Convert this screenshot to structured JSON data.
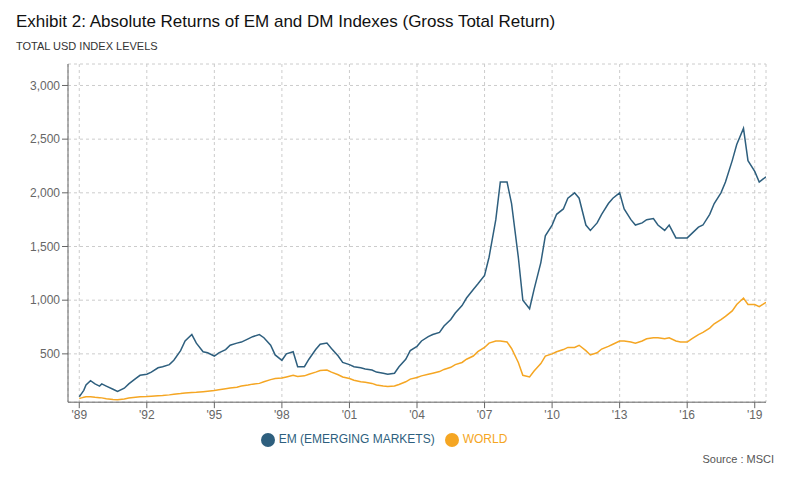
{
  "chart_data": {
    "type": "line",
    "title": "Exhibit 2: Absolute Returns of EM and DM Indexes (Gross Total Return)",
    "ylabel": "TOTAL USD INDEX LEVELS",
    "annotations": [
      "Source : MSCI"
    ],
    "grid": true,
    "legend": "bottom",
    "xlim": [
      1988.5,
      2019.5
    ],
    "xticks": [
      {
        "value": 1989,
        "label": "'89"
      },
      {
        "value": 1992,
        "label": "'92"
      },
      {
        "value": 1995,
        "label": "'95"
      },
      {
        "value": 1998,
        "label": "'98"
      },
      {
        "value": 2001,
        "label": "'01"
      },
      {
        "value": 2004,
        "label": "'04"
      },
      {
        "value": 2007,
        "label": "'07"
      },
      {
        "value": 2010,
        "label": "'10"
      },
      {
        "value": 2013,
        "label": "'13"
      },
      {
        "value": 2016,
        "label": "'16"
      },
      {
        "value": 2019,
        "label": "'19"
      }
    ],
    "ylim": [
      50,
      3200
    ],
    "yticks": [
      500,
      {
        "value": 1000,
        "label": "1,000"
      },
      {
        "value": 1500,
        "label": "1,500"
      },
      {
        "value": 2000,
        "label": "2,000"
      },
      {
        "value": 2500,
        "label": "2,500"
      },
      {
        "value": 3000,
        "label": "3,000"
      }
    ],
    "x": [
      1989.0,
      1989.1,
      1989.2,
      1989.3,
      1989.5,
      1989.7,
      1989.9,
      1990.0,
      1990.2,
      1990.5,
      1990.7,
      1991.0,
      1991.2,
      1991.5,
      1991.7,
      1992.0,
      1992.2,
      1992.5,
      1992.7,
      1993.0,
      1993.2,
      1993.5,
      1993.7,
      1994.0,
      1994.2,
      1994.5,
      1994.7,
      1995.0,
      1995.2,
      1995.5,
      1995.7,
      1996.0,
      1996.2,
      1996.5,
      1996.7,
      1997.0,
      1997.2,
      1997.5,
      1997.7,
      1998.0,
      1998.2,
      1998.5,
      1998.7,
      1999.0,
      1999.2,
      1999.5,
      1999.7,
      2000.0,
      2000.2,
      2000.5,
      2000.7,
      2001.0,
      2001.2,
      2001.5,
      2001.7,
      2002.0,
      2002.2,
      2002.5,
      2002.7,
      2003.0,
      2003.2,
      2003.5,
      2003.7,
      2004.0,
      2004.2,
      2004.5,
      2004.7,
      2005.0,
      2005.2,
      2005.5,
      2005.7,
      2006.0,
      2006.2,
      2006.5,
      2006.7,
      2007.0,
      2007.2,
      2007.5,
      2007.7,
      2008.0,
      2008.2,
      2008.5,
      2008.7,
      2009.0,
      2009.2,
      2009.5,
      2009.7,
      2010.0,
      2010.2,
      2010.5,
      2010.7,
      2011.0,
      2011.2,
      2011.5,
      2011.7,
      2012.0,
      2012.2,
      2012.5,
      2012.7,
      2013.0,
      2013.2,
      2013.5,
      2013.7,
      2014.0,
      2014.2,
      2014.5,
      2014.7,
      2015.0,
      2015.2,
      2015.5,
      2015.7,
      2016.0,
      2016.2,
      2016.5,
      2016.7,
      2017.0,
      2017.2,
      2017.5,
      2017.7,
      2018.0,
      2018.2,
      2018.5,
      2018.7,
      2019.0,
      2019.2,
      2019.5
    ],
    "series": [
      {
        "name": "EM (EMERGING MARKETS)",
        "color": "#2E5F7E",
        "values": [
          100,
          130,
          160,
          210,
          250,
          220,
          200,
          220,
          200,
          170,
          150,
          180,
          220,
          270,
          300,
          310,
          330,
          370,
          380,
          400,
          440,
          530,
          620,
          680,
          600,
          520,
          510,
          480,
          510,
          540,
          580,
          600,
          610,
          640,
          660,
          680,
          650,
          580,
          490,
          440,
          500,
          520,
          380,
          380,
          450,
          540,
          590,
          600,
          550,
          480,
          420,
          400,
          380,
          370,
          360,
          350,
          330,
          320,
          310,
          320,
          380,
          450,
          530,
          570,
          620,
          660,
          680,
          700,
          760,
          820,
          880,
          950,
          1020,
          1100,
          1150,
          1230,
          1400,
          1750,
          2100,
          2100,
          1900,
          1400,
          1000,
          920,
          1100,
          1350,
          1600,
          1700,
          1800,
          1850,
          1950,
          2000,
          1950,
          1700,
          1650,
          1720,
          1800,
          1900,
          1950,
          2000,
          1850,
          1750,
          1700,
          1720,
          1750,
          1760,
          1700,
          1650,
          1700,
          1580,
          1580,
          1580,
          1620,
          1680,
          1700,
          1800,
          1900,
          2000,
          2100,
          2300,
          2450,
          2600,
          2300,
          2200,
          2100,
          2150
        ]
      },
      {
        "name": "WORLD",
        "color": "#F5A623",
        "values": [
          85,
          90,
          95,
          100,
          100,
          95,
          92,
          90,
          82,
          75,
          72,
          80,
          88,
          95,
          100,
          102,
          105,
          110,
          112,
          118,
          124,
          130,
          136,
          140,
          142,
          148,
          152,
          158,
          165,
          175,
          182,
          190,
          200,
          210,
          218,
          225,
          240,
          260,
          270,
          275,
          285,
          300,
          290,
          295,
          310,
          330,
          345,
          350,
          330,
          305,
          285,
          270,
          255,
          240,
          235,
          225,
          210,
          200,
          195,
          200,
          215,
          240,
          265,
          280,
          295,
          310,
          320,
          335,
          355,
          375,
          400,
          420,
          450,
          480,
          520,
          560,
          600,
          620,
          620,
          610,
          550,
          420,
          300,
          285,
          340,
          410,
          480,
          500,
          520,
          540,
          560,
          560,
          580,
          530,
          490,
          510,
          545,
          570,
          590,
          620,
          620,
          610,
          600,
          620,
          640,
          650,
          650,
          640,
          650,
          620,
          610,
          610,
          640,
          680,
          700,
          740,
          780,
          820,
          850,
          900,
          960,
          1020,
          960,
          960,
          940,
          980
        ]
      }
    ]
  }
}
